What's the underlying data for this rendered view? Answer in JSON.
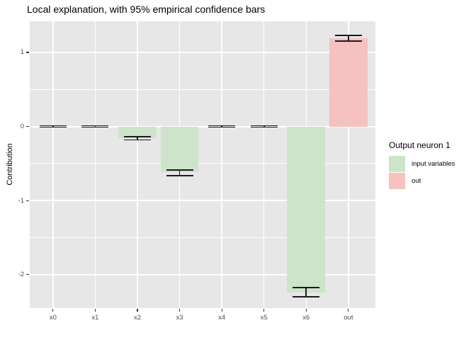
{
  "title": "Local explanation, with 95% empirical confidence bars",
  "axes": {
    "y_label": "Contribution",
    "y_tick_labels": [
      "1",
      "0",
      "-1",
      "-2"
    ]
  },
  "legend": {
    "title": "Output neuron 1",
    "items": [
      {
        "label": "input variables",
        "color": "#cde4ca"
      },
      {
        "label": "out",
        "color": "#f5c1c1"
      }
    ]
  },
  "chart_data": {
    "type": "bar",
    "title": "Local explanation, with 95% empirical confidence bars",
    "xlabel": "",
    "ylabel": "Contribution",
    "categories": [
      "x0",
      "x1",
      "x2",
      "x3",
      "x4",
      "x5",
      "x6",
      "out"
    ],
    "values": [
      0,
      0,
      -0.16,
      -0.62,
      0,
      0,
      -2.24,
      1.19
    ],
    "error_low": [
      -0.01,
      -0.01,
      -0.18,
      -0.66,
      -0.01,
      -0.01,
      -2.3,
      1.15
    ],
    "error_high": [
      0.01,
      0.01,
      -0.14,
      -0.59,
      0.01,
      0.01,
      -2.17,
      1.23
    ],
    "groups": [
      "input variables",
      "input variables",
      "input variables",
      "input variables",
      "input variables",
      "input variables",
      "input variables",
      "out"
    ],
    "group_colors": {
      "input variables": "#cde4ca",
      "out": "#f5c1c1"
    },
    "error_bar_color": "#1b1b1b",
    "ylim": [
      -2.45,
      1.42
    ],
    "y_major_ticks": [
      1,
      0,
      -1,
      -2
    ],
    "y_minor_ticks": [
      0.5,
      -0.5,
      -1.5
    ],
    "panel_bg": "#e7e7e7",
    "grid": true,
    "legend_title": "Output neuron 1",
    "legend_position": "right"
  }
}
